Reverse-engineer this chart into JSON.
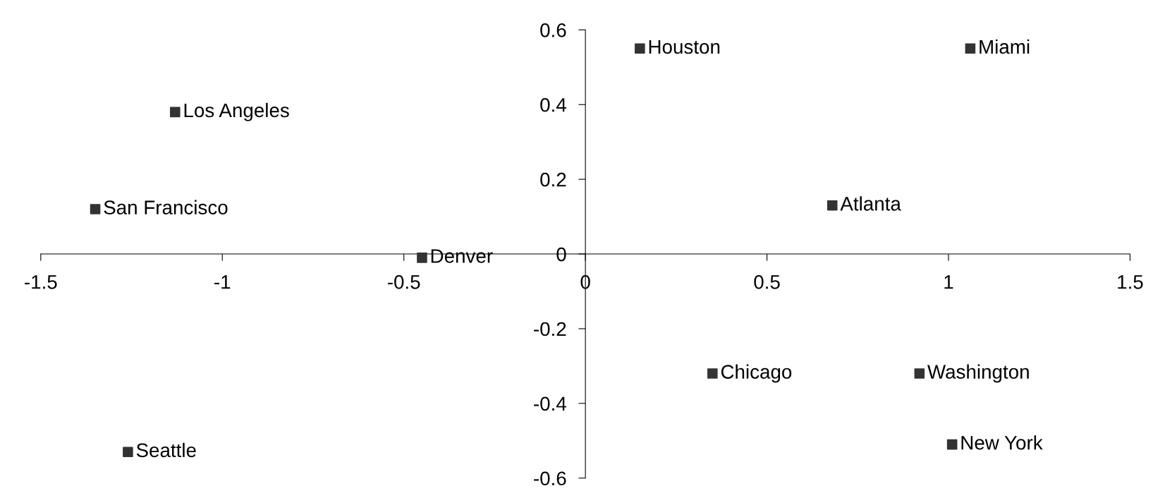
{
  "chart_data": {
    "type": "scatter",
    "marker": "square",
    "grid": false,
    "x": [
      0.15,
      1.06,
      -1.13,
      -1.35,
      0.68,
      -0.45,
      0.35,
      0.92,
      1.01,
      -1.26
    ],
    "series": [
      {
        "color": "#333333",
        "values": [
          0.55,
          0.55,
          0.38,
          0.12,
          0.13,
          -0.01,
          -0.32,
          -0.32,
          -0.51,
          -0.53
        ]
      }
    ],
    "annotations": [
      {
        "text": "Houston",
        "x": 0.15,
        "y": 0.55
      },
      {
        "text": "Miami",
        "x": 1.06,
        "y": 0.55
      },
      {
        "text": "Los Angeles",
        "x": -1.13,
        "y": 0.38
      },
      {
        "text": "San Francisco",
        "x": -1.35,
        "y": 0.12
      },
      {
        "text": "Atlanta",
        "x": 0.68,
        "y": 0.13
      },
      {
        "text": "Denver",
        "x": -0.45,
        "y": -0.01
      },
      {
        "text": "Chicago",
        "x": 0.35,
        "y": -0.32
      },
      {
        "text": "Washington",
        "x": 0.92,
        "y": -0.32
      },
      {
        "text": "New York",
        "x": 1.01,
        "y": -0.51
      },
      {
        "text": "Seattle",
        "x": -1.26,
        "y": -0.53
      }
    ],
    "xlim": [
      -1.5,
      1.5
    ],
    "ylim": [
      -0.6,
      0.6
    ],
    "xticks": [
      -1.5,
      -1,
      -0.5,
      0,
      0.5,
      1,
      1.5
    ],
    "yticks": [
      -0.6,
      -0.4,
      -0.2,
      0,
      0.2,
      0.4,
      0.6
    ]
  }
}
